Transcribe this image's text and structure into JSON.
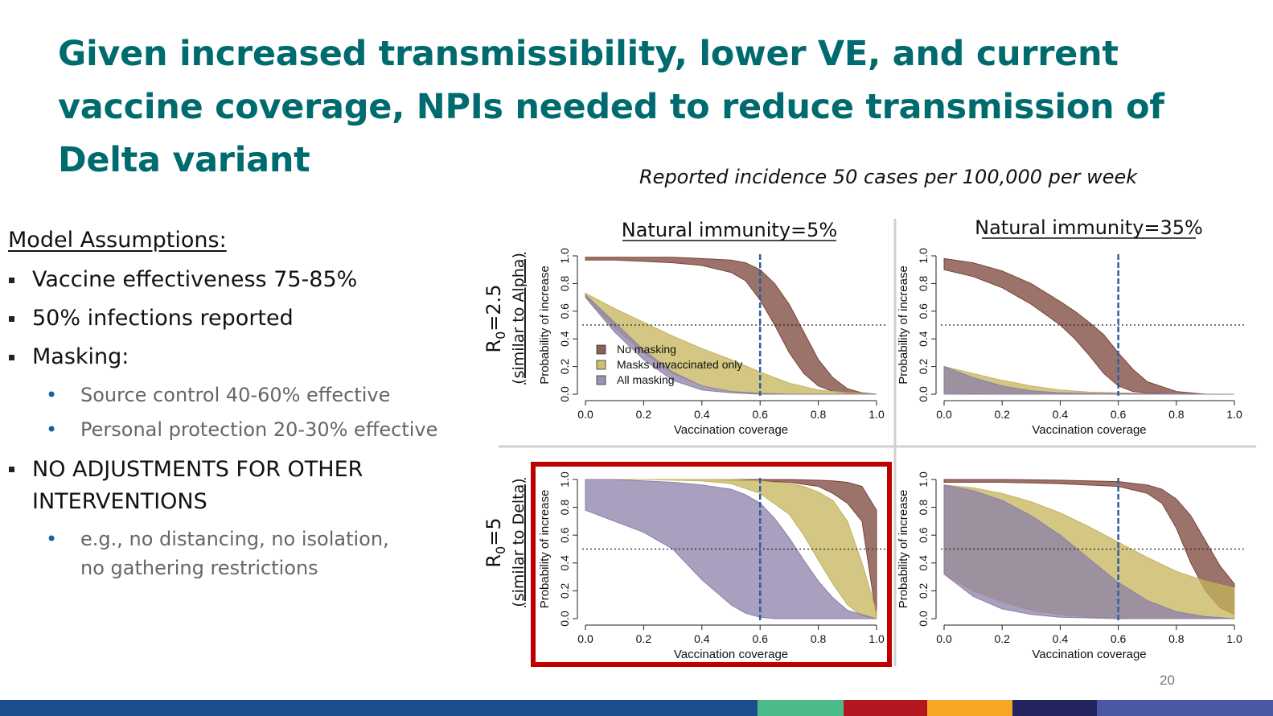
{
  "title": "Given increased transmissibility, lower VE, and current vaccine coverage, NPIs needed to reduce transmission of Delta variant",
  "subtitle": "Reported incidence 50 cases per 100,000 per week",
  "assumptions": {
    "heading": "Model Assumptions:",
    "items": [
      {
        "text": "Vaccine effectiveness 75-85%"
      },
      {
        "text": "50% infections reported"
      },
      {
        "text": "Masking:"
      },
      {
        "sub": "Source control 40-60% effective"
      },
      {
        "sub": "Personal protection 20-30% effective"
      },
      {
        "text": "NO ADJUSTMENTS FOR OTHER",
        "text2": "INTERVENTIONS"
      },
      {
        "sub": "e.g., no distancing, no isolation,",
        "sub2": "no gathering restrictions"
      }
    ]
  },
  "page_number": "20",
  "stripe_colors": [
    "#1b4d8f",
    "#4cbb8a",
    "#b3171f",
    "#f5a623",
    "#23235e",
    "#4b57a3"
  ],
  "colors": {
    "no_masking": "#7b4438",
    "masks_unvaccinated": "#c4b45a",
    "all_masking": "#8c7fa8",
    "vline": "#2f5f9e",
    "highlight": "#c00000"
  },
  "chart_data": [
    {
      "type": "area",
      "panel": "top-left",
      "col_title": "Natural immunity=5%",
      "row_title": "R0=2.5",
      "row_subtitle": "(similar to Alpha)",
      "xlabel": "Vaccination coverage",
      "ylabel": "Probability of increase",
      "xlim": [
        0,
        1
      ],
      "ylim": [
        0,
        1
      ],
      "xticks": [
        "0.0",
        "0.2",
        "0.4",
        "0.6",
        "0.8",
        "1.0"
      ],
      "yticks": [
        "0.0",
        "0.2",
        "0.4",
        "0.6",
        "0.8",
        "1.0"
      ],
      "reference_h": 0.5,
      "reference_v": 0.6,
      "legend": [
        "No masking",
        "Masks unvaccinated only",
        "All masking"
      ],
      "highlighted": false,
      "series": [
        {
          "name": "No masking",
          "x": [
            0,
            0.1,
            0.2,
            0.3,
            0.4,
            0.5,
            0.55,
            0.6,
            0.65,
            0.7,
            0.75,
            0.8,
            0.85,
            0.9,
            0.95,
            1.0
          ],
          "upper": [
            0.99,
            0.99,
            0.99,
            0.99,
            0.98,
            0.97,
            0.95,
            0.9,
            0.8,
            0.65,
            0.45,
            0.25,
            0.12,
            0.04,
            0.01,
            0.0
          ],
          "lower": [
            0.97,
            0.97,
            0.96,
            0.95,
            0.93,
            0.88,
            0.82,
            0.68,
            0.5,
            0.3,
            0.15,
            0.06,
            0.02,
            0.005,
            0.0,
            0.0
          ]
        },
        {
          "name": "Masks unvaccinated only",
          "x": [
            0,
            0.1,
            0.2,
            0.3,
            0.4,
            0.5,
            0.6,
            0.7,
            0.8,
            0.9,
            1.0
          ],
          "upper": [
            0.73,
            0.62,
            0.52,
            0.42,
            0.33,
            0.25,
            0.16,
            0.08,
            0.03,
            0.01,
            0.0
          ],
          "lower": [
            0.7,
            0.48,
            0.3,
            0.15,
            0.06,
            0.02,
            0.01,
            0.0,
            0.0,
            0.0,
            0.0
          ]
        },
        {
          "name": "All masking",
          "x": [
            0,
            0.1,
            0.2,
            0.3,
            0.4,
            0.5,
            0.6,
            0.7,
            0.8,
            0.9,
            1.0
          ],
          "upper": [
            0.72,
            0.52,
            0.32,
            0.16,
            0.06,
            0.02,
            0.005,
            0.0,
            0.0,
            0.0,
            0.0
          ],
          "lower": [
            0.7,
            0.45,
            0.25,
            0.1,
            0.03,
            0.01,
            0.0,
            0.0,
            0.0,
            0.0,
            0.0
          ]
        }
      ]
    },
    {
      "type": "area",
      "panel": "top-right",
      "col_title": "Natural immunity=35%",
      "xlabel": "Vaccination coverage",
      "ylabel": "Probability of increase",
      "xlim": [
        0,
        1
      ],
      "ylim": [
        0,
        1
      ],
      "xticks": [
        "0.0",
        "0.2",
        "0.4",
        "0.6",
        "0.8",
        "1.0"
      ],
      "yticks": [
        "0.0",
        "0.2",
        "0.4",
        "0.6",
        "0.8",
        "1.0"
      ],
      "reference_h": 0.5,
      "reference_v": 0.6,
      "highlighted": false,
      "series": [
        {
          "name": "No masking",
          "x": [
            0,
            0.1,
            0.2,
            0.3,
            0.4,
            0.45,
            0.5,
            0.55,
            0.6,
            0.65,
            0.7,
            0.8,
            0.9,
            1.0
          ],
          "upper": [
            0.98,
            0.95,
            0.89,
            0.8,
            0.67,
            0.6,
            0.52,
            0.43,
            0.3,
            0.18,
            0.09,
            0.02,
            0.0,
            0.0
          ],
          "lower": [
            0.9,
            0.85,
            0.77,
            0.65,
            0.5,
            0.4,
            0.28,
            0.15,
            0.06,
            0.02,
            0.01,
            0.0,
            0.0,
            0.0
          ]
        },
        {
          "name": "Masks unvaccinated only",
          "x": [
            0,
            0.1,
            0.2,
            0.3,
            0.4,
            0.5,
            0.6,
            0.7,
            0.8,
            1.0
          ],
          "upper": [
            0.2,
            0.15,
            0.1,
            0.06,
            0.03,
            0.015,
            0.01,
            0.005,
            0.0,
            0.0
          ],
          "lower": [
            0.01,
            0.005,
            0.0,
            0.0,
            0.0,
            0.0,
            0.0,
            0.0,
            0.0,
            0.0
          ]
        },
        {
          "name": "All masking",
          "x": [
            0,
            0.1,
            0.2,
            0.3,
            0.4,
            0.5,
            1.0
          ],
          "upper": [
            0.2,
            0.12,
            0.06,
            0.025,
            0.01,
            0.005,
            0.0
          ],
          "lower": [
            0.0,
            0.0,
            0.0,
            0.0,
            0.0,
            0.0,
            0.0
          ]
        }
      ]
    },
    {
      "type": "area",
      "panel": "bottom-left",
      "row_title": "R0=5",
      "row_subtitle": "(similar to Delta)",
      "xlabel": "Vaccination coverage",
      "ylabel": "Probability of increase",
      "xlim": [
        0,
        1
      ],
      "ylim": [
        0,
        1
      ],
      "xticks": [
        "0.0",
        "0.2",
        "0.4",
        "0.6",
        "0.8",
        "1.0"
      ],
      "yticks": [
        "0.0",
        "0.2",
        "0.4",
        "0.6",
        "0.8",
        "1.0"
      ],
      "reference_h": 0.5,
      "reference_v": 0.6,
      "highlighted": true,
      "series": [
        {
          "name": "No masking",
          "x": [
            0,
            0.2,
            0.4,
            0.6,
            0.7,
            0.8,
            0.85,
            0.9,
            0.95,
            1.0
          ],
          "upper": [
            1.0,
            1.0,
            1.0,
            1.0,
            1.0,
            0.995,
            0.99,
            0.98,
            0.95,
            0.78
          ],
          "lower": [
            1.0,
            1.0,
            1.0,
            0.99,
            0.98,
            0.95,
            0.9,
            0.83,
            0.7,
            0.0
          ]
        },
        {
          "name": "Masks unvaccinated only",
          "x": [
            0,
            0.2,
            0.4,
            0.5,
            0.6,
            0.7,
            0.75,
            0.8,
            0.85,
            0.9,
            0.95,
            1.0
          ],
          "upper": [
            1.0,
            1.0,
            1.0,
            1.0,
            0.99,
            0.97,
            0.95,
            0.91,
            0.85,
            0.7,
            0.4,
            0.05
          ],
          "lower": [
            1.0,
            1.0,
            0.99,
            0.97,
            0.9,
            0.75,
            0.6,
            0.42,
            0.25,
            0.1,
            0.02,
            0.0
          ]
        },
        {
          "name": "All masking",
          "x": [
            0,
            0.1,
            0.2,
            0.3,
            0.4,
            0.5,
            0.55,
            0.6,
            0.65,
            0.7,
            0.75,
            0.8,
            0.85,
            0.9,
            1.0
          ],
          "upper": [
            1.0,
            1.0,
            0.99,
            0.98,
            0.96,
            0.93,
            0.89,
            0.83,
            0.72,
            0.58,
            0.42,
            0.27,
            0.15,
            0.06,
            0.0
          ],
          "lower": [
            0.78,
            0.7,
            0.62,
            0.5,
            0.28,
            0.1,
            0.04,
            0.01,
            0.0,
            0.0,
            0.0,
            0.0,
            0.0,
            0.0,
            0.0
          ]
        }
      ]
    },
    {
      "type": "area",
      "panel": "bottom-right",
      "xlabel": "Vaccination coverage",
      "ylabel": "Probability of increase",
      "xlim": [
        0,
        1
      ],
      "ylim": [
        0,
        1
      ],
      "xticks": [
        "0.0",
        "0.2",
        "0.4",
        "0.6",
        "0.8",
        "1.0"
      ],
      "yticks": [
        "0.0",
        "0.2",
        "0.4",
        "0.6",
        "0.8",
        "1.0"
      ],
      "reference_h": 0.5,
      "reference_v": 0.6,
      "highlighted": false,
      "series": [
        {
          "name": "No masking",
          "x": [
            0,
            0.2,
            0.4,
            0.6,
            0.7,
            0.75,
            0.8,
            0.85,
            0.9,
            0.95,
            1.0
          ],
          "upper": [
            1.0,
            1.0,
            0.995,
            0.985,
            0.96,
            0.93,
            0.86,
            0.74,
            0.56,
            0.38,
            0.25
          ],
          "lower": [
            0.98,
            0.98,
            0.97,
            0.95,
            0.9,
            0.83,
            0.65,
            0.4,
            0.2,
            0.08,
            0.03
          ]
        },
        {
          "name": "Masks unvaccinated only",
          "x": [
            0,
            0.1,
            0.2,
            0.3,
            0.4,
            0.5,
            0.6,
            0.7,
            0.8,
            0.9,
            1.0
          ],
          "upper": [
            0.96,
            0.94,
            0.9,
            0.84,
            0.76,
            0.66,
            0.55,
            0.44,
            0.34,
            0.27,
            0.22
          ],
          "lower": [
            0.32,
            0.2,
            0.12,
            0.06,
            0.03,
            0.01,
            0.005,
            0.0,
            0.0,
            0.0,
            0.0
          ]
        },
        {
          "name": "All masking",
          "x": [
            0,
            0.1,
            0.2,
            0.3,
            0.4,
            0.5,
            0.6,
            0.7,
            0.8,
            0.9,
            1.0
          ],
          "upper": [
            0.96,
            0.92,
            0.85,
            0.74,
            0.6,
            0.43,
            0.26,
            0.13,
            0.05,
            0.015,
            0.0
          ],
          "lower": [
            0.32,
            0.16,
            0.07,
            0.03,
            0.01,
            0.005,
            0.0,
            0.0,
            0.0,
            0.0,
            0.0
          ]
        }
      ]
    }
  ]
}
